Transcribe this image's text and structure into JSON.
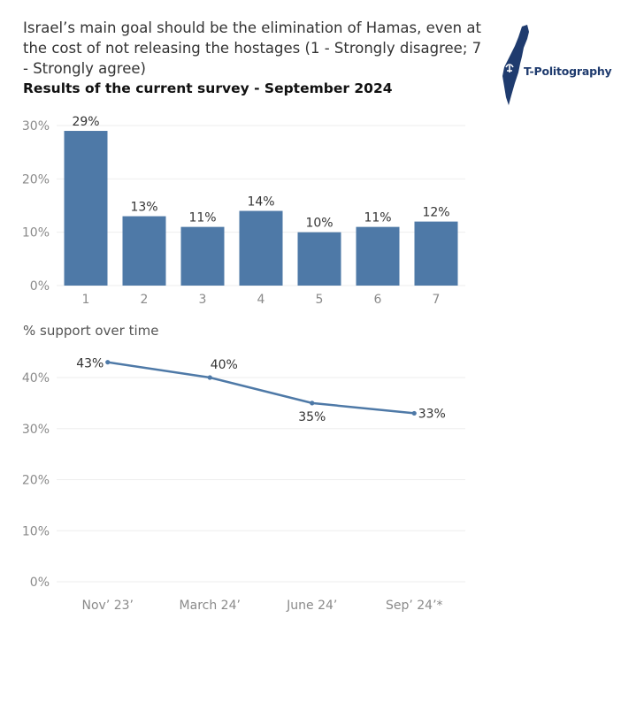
{
  "header": {
    "title": "Israel’s main goal should be the elimination of Hamas, even at the cost of not releasing the hostages (1 - Strongly disagree; 7 - Strongly agree)",
    "subtitle": "Results of the current survey - September 2024"
  },
  "logo": {
    "text": "T-Politography",
    "icon": "israel-map-icon",
    "color": "#1f3b6e"
  },
  "chart_data": [
    {
      "type": "bar",
      "title": "",
      "categories": [
        "1",
        "2",
        "3",
        "4",
        "5",
        "6",
        "7"
      ],
      "values": [
        29,
        13,
        11,
        14,
        10,
        11,
        12
      ],
      "data_labels": [
        "29%",
        "13%",
        "11%",
        "14%",
        "10%",
        "11%",
        "12%"
      ],
      "ylim": [
        0,
        30
      ],
      "yticks": [
        0,
        10,
        20,
        30
      ],
      "ytick_labels": [
        "0%",
        "10%",
        "20%",
        "30%"
      ],
      "color": "#4e79a7",
      "grid": true
    },
    {
      "type": "line",
      "title": "% support over time",
      "categories": [
        "Nov’ 23’",
        "March 24’",
        "June 24’",
        "Sep’ 24’*"
      ],
      "values": [
        43,
        40,
        35,
        33
      ],
      "data_labels": [
        "43%",
        "40%",
        "35%",
        "33%"
      ],
      "ylim": [
        0,
        40
      ],
      "yticks": [
        0,
        10,
        20,
        30,
        40
      ],
      "ytick_labels": [
        "0%",
        "10%",
        "20%",
        "30%",
        "40%"
      ],
      "color": "#4e79a7",
      "grid": true
    }
  ]
}
